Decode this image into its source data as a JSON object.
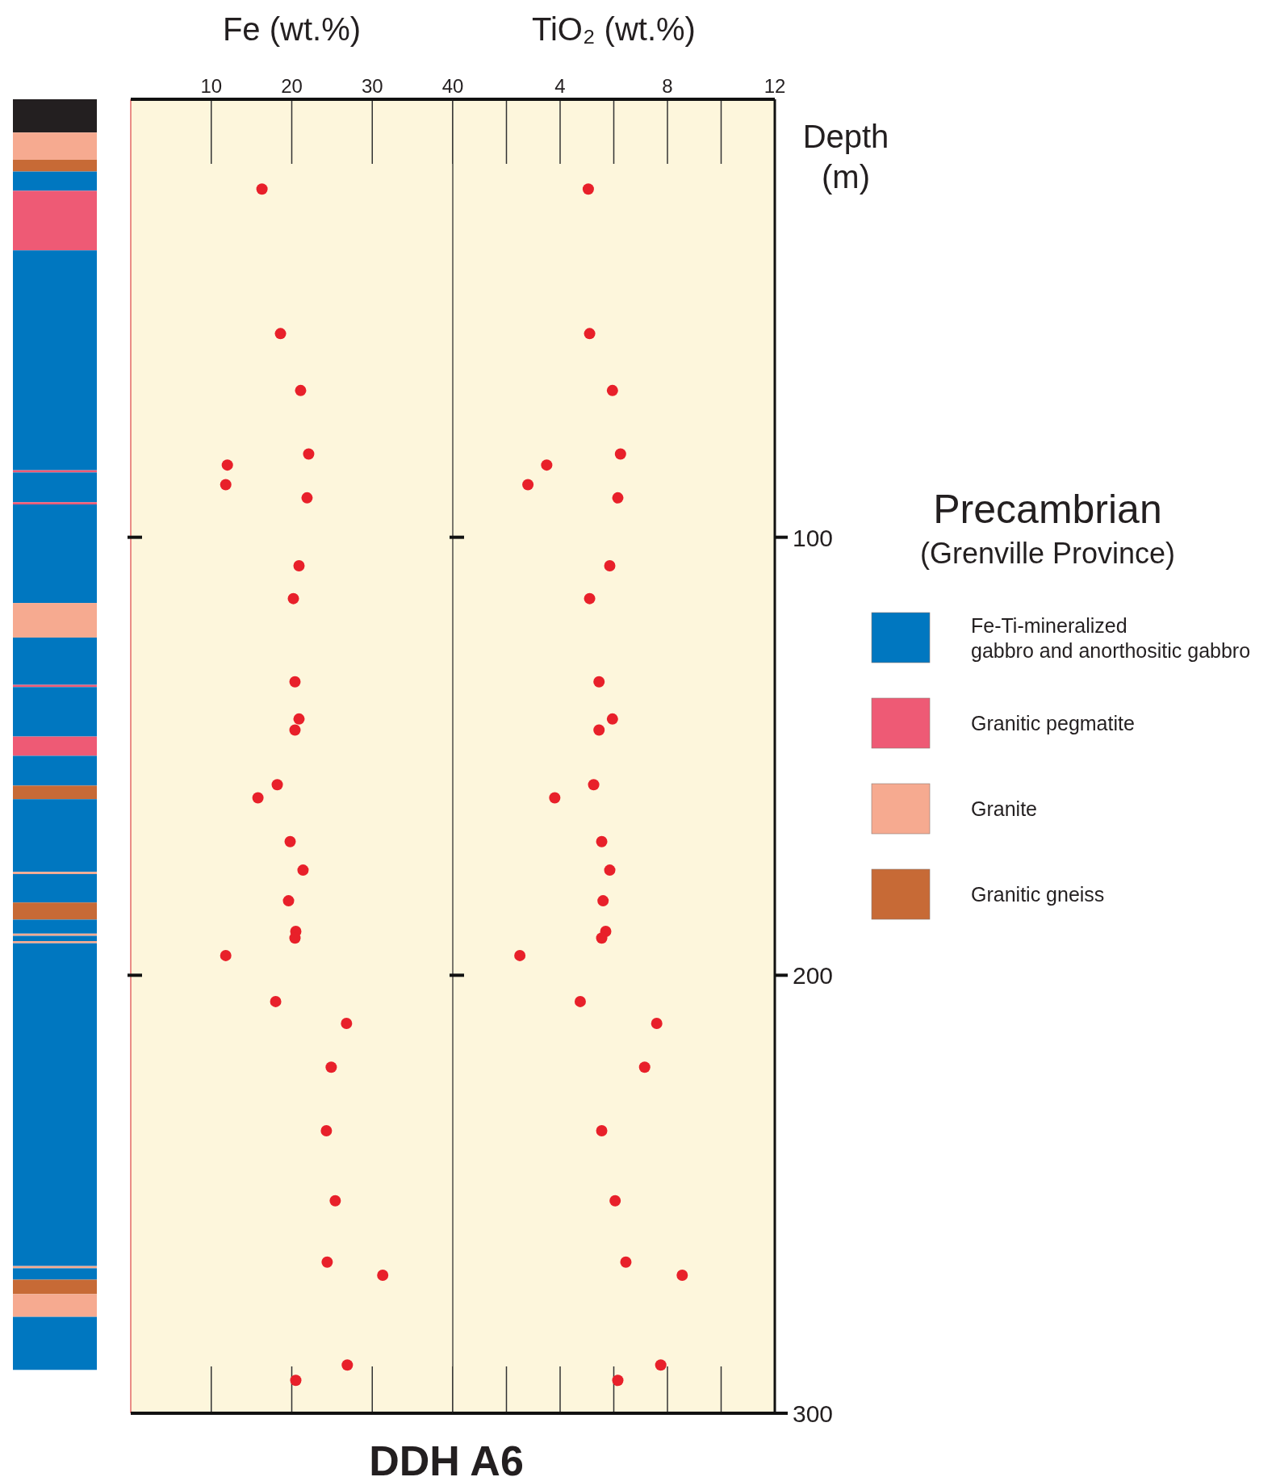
{
  "chart_data": [
    {
      "type": "bar",
      "stacked": true,
      "categories": [
        null
      ],
      "ylim": [
        300,
        0
      ],
      "tick_labels": false,
      "legend": "right",
      "legend_title": "Precambrian",
      "annotations": [
        "(Grenville Province)"
      ],
      "series": [
        {
          "color": "#231f20",
          "values": [
            7.6
          ]
        },
        {
          "color": "#f6aa90",
          "values": [
            6.2
          ]
        },
        {
          "color": "#c76a36",
          "values": [
            2.7
          ]
        },
        {
          "name": "Fe-Ti-mineralized gabbro and anorthositic gabbro",
          "color": "#0077c0",
          "values": [
            4.4
          ]
        },
        {
          "name": "Granitic pegmatite",
          "color": "#ee5a75",
          "values": [
            13.6
          ]
        },
        {
          "color": "#0077c0",
          "values": [
            50.2
          ]
        },
        {
          "color": "#ee5a75",
          "values": [
            0.5
          ]
        },
        {
          "color": "#0077c0",
          "values": [
            6.8
          ]
        },
        {
          "color": "#ee5a75",
          "values": [
            0.5
          ]
        },
        {
          "color": "#0077c0",
          "values": [
            22.5
          ]
        },
        {
          "name": "Granite",
          "color": "#f6aa90",
          "values": [
            7.9
          ]
        },
        {
          "color": "#0077c0",
          "values": [
            10.8
          ]
        },
        {
          "color": "#ee5a75",
          "values": [
            0.5
          ]
        },
        {
          "color": "#0077c0",
          "values": [
            11.3
          ]
        },
        {
          "color": "#ee5a75",
          "values": [
            4.4
          ]
        },
        {
          "color": "#0077c0",
          "values": [
            6.8
          ]
        },
        {
          "name": "Granitic gneiss",
          "color": "#c76a36",
          "values": [
            3.1
          ]
        },
        {
          "color": "#0077c0",
          "values": [
            16.6
          ]
        },
        {
          "color": "#f6aa90",
          "values": [
            0.5
          ]
        },
        {
          "color": "#0077c0",
          "values": [
            6.5
          ]
        },
        {
          "color": "#c76a36",
          "values": [
            3.9
          ]
        },
        {
          "color": "#0077c0",
          "values": [
            3.2
          ]
        },
        {
          "color": "#f6aa90",
          "values": [
            0.5
          ]
        },
        {
          "color": "#0077c0",
          "values": [
            1.2
          ]
        },
        {
          "color": "#f6aa90",
          "values": [
            0.5
          ]
        },
        {
          "color": "#0077c0",
          "values": [
            73.7
          ]
        },
        {
          "color": "#f6aa90",
          "values": [
            0.5
          ]
        },
        {
          "color": "#0077c0",
          "values": [
            2.6
          ]
        },
        {
          "color": "#c76a36",
          "values": [
            3.3
          ]
        },
        {
          "color": "#f6aa90",
          "values": [
            5.2
          ]
        },
        {
          "color": "#0077c0",
          "values": [
            12.1
          ]
        }
      ]
    },
    {
      "type": "scatter",
      "title": "DDH A6",
      "xlabel": "Fe (wt.%)",
      "xlim": [
        0,
        40
      ],
      "xticks": [
        10,
        20,
        30,
        40
      ],
      "ylim": [
        300,
        0
      ],
      "yticks": [
        100,
        200,
        300
      ],
      "tick_labels": "x",
      "marker": "circle",
      "series": [
        {
          "color": "#e8202a",
          "x": [
            16.3,
            18.6,
            21.1,
            22.1,
            12.0,
            11.8,
            21.9,
            20.9,
            20.2,
            20.4,
            20.9,
            20.4,
            18.2,
            15.8,
            19.8,
            21.4,
            19.6,
            20.5,
            20.4,
            11.8,
            18.0,
            26.8,
            24.9,
            24.3,
            25.4,
            24.4,
            31.3,
            26.9,
            20.5
          ],
          "values": [
            20.5,
            53.5,
            66.5,
            81,
            83.5,
            88,
            91,
            106.5,
            114,
            133,
            141.5,
            144,
            156.5,
            159.5,
            169.5,
            176,
            183,
            190,
            191.5,
            195.5,
            206,
            211,
            221,
            235.5,
            251.5,
            265.5,
            268.5,
            289,
            292.5
          ]
        }
      ]
    },
    {
      "type": "scatter",
      "xlabel": "TiO₂ (wt.%)",
      "ylabel": "Depth (m)",
      "xlim": [
        0,
        12
      ],
      "xticks": [
        {
          "value": 2,
          "label": null
        },
        4,
        {
          "value": 6,
          "label": null
        },
        8,
        {
          "value": 10,
          "label": null
        },
        12
      ],
      "ylim": [
        300,
        0
      ],
      "yticks": [
        100,
        200,
        300
      ],
      "marker": "circle",
      "series": [
        {
          "color": "#e8202a",
          "x": [
            5.05,
            5.1,
            5.95,
            6.25,
            3.5,
            2.8,
            6.15,
            5.85,
            5.1,
            5.45,
            5.95,
            5.45,
            5.25,
            3.8,
            5.55,
            5.85,
            5.6,
            5.7,
            5.55,
            2.5,
            4.75,
            7.6,
            7.15,
            5.55,
            6.05,
            6.45,
            8.55,
            7.75,
            6.15
          ],
          "values": [
            20.5,
            53.5,
            66.5,
            81,
            83.5,
            88,
            91,
            106.5,
            114,
            133,
            141.5,
            144,
            156.5,
            159.5,
            169.5,
            176,
            183,
            190,
            191.5,
            195.5,
            206,
            211,
            221,
            235.5,
            251.5,
            265.5,
            268.5,
            289,
            292.5
          ]
        }
      ]
    }
  ]
}
